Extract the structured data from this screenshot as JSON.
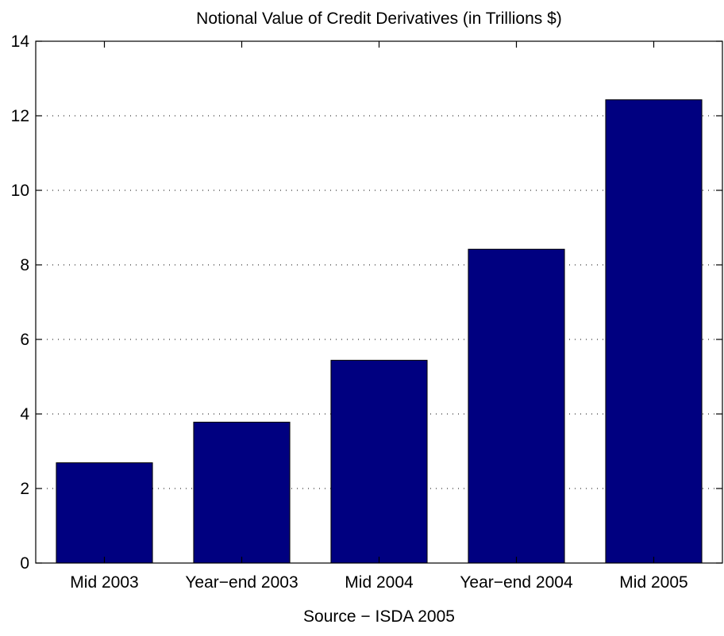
{
  "chart_data": {
    "type": "bar",
    "title": "Notional Value of Credit Derivatives (in Trillions $)",
    "xlabel": "Source − ISDA 2005",
    "ylabel": "",
    "categories": [
      "Mid 2003",
      "Year−end 2003",
      "Mid 2004",
      "Year−end 2004",
      "Mid 2005"
    ],
    "values": [
      2.69,
      3.78,
      5.44,
      8.42,
      12.43
    ],
    "ylim": [
      0,
      14
    ],
    "yticks": [
      "0",
      "2",
      "4",
      "6",
      "8",
      "10",
      "12",
      "14"
    ],
    "grid": "horizontal dotted",
    "bar_color": "#000080",
    "legend": "none"
  }
}
